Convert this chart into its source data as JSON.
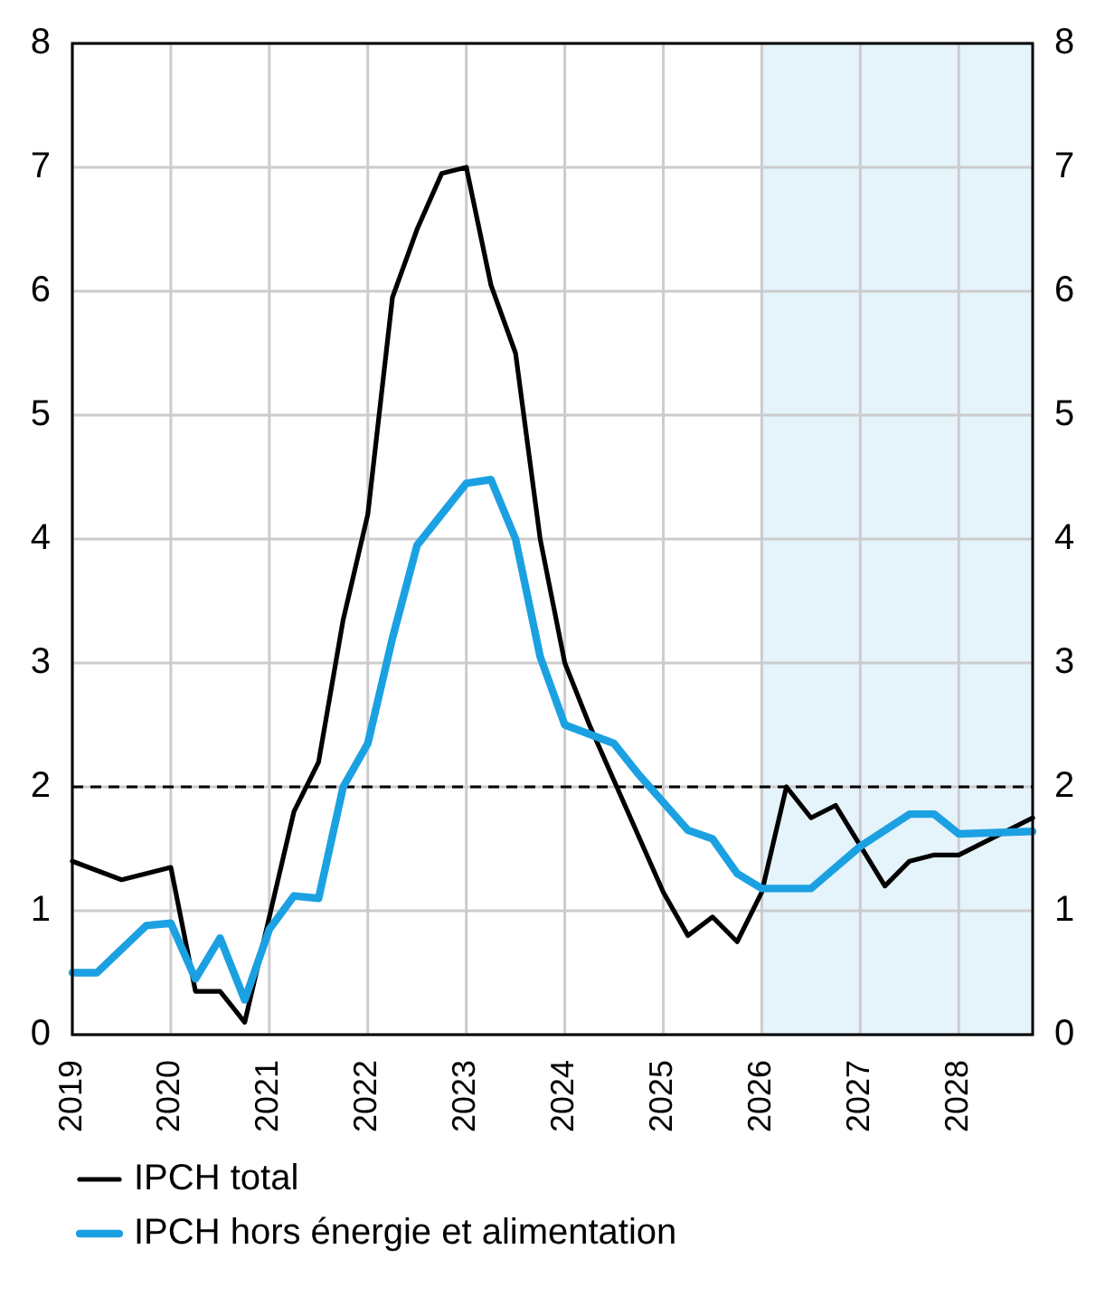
{
  "chart_data": {
    "type": "line",
    "xlim": [
      2019,
      2028.75
    ],
    "xticks": [
      2019,
      2020,
      2021,
      2022,
      2023,
      2024,
      2025,
      2026,
      2027,
      2028
    ],
    "ylim": [
      0,
      8
    ],
    "yticks": [
      0,
      1,
      2,
      3,
      4,
      5,
      6,
      7,
      8
    ],
    "y2lim": [
      0,
      8
    ],
    "y2ticks": [
      0,
      1,
      2,
      3,
      4,
      5,
      6,
      7,
      8
    ],
    "grid": true,
    "legend": "bottom",
    "line_style": "solid",
    "marker": "none",
    "ref_lines": [
      {
        "axis": "y",
        "value": 2,
        "color": "#000000",
        "line_style": "dashed"
      }
    ],
    "bands": [
      {
        "axis": "x",
        "from": 2026,
        "to": 2028.75,
        "color": "#e5f3fb"
      }
    ],
    "series": [
      {
        "name": "IPCH total",
        "color": "#000000",
        "x": [
          2019,
          2019.5,
          2020,
          2020.25,
          2020.5,
          2020.75,
          2021.25,
          2021.5,
          2021.75,
          2022,
          2022.25,
          2022.5,
          2022.75,
          2023,
          2023.25,
          2023.5,
          2023.75,
          2024,
          2024.25,
          2025,
          2025.25,
          2025.5,
          2025.75,
          2026,
          2026.25,
          2026.5,
          2026.75,
          2027.25,
          2027.5,
          2027.75,
          2028,
          2028.75
        ],
        "values": [
          1.4,
          1.25,
          1.35,
          0.35,
          0.35,
          0.1,
          1.8,
          2.2,
          3.35,
          4.2,
          5.95,
          6.5,
          6.95,
          7.0,
          6.05,
          5.5,
          4.0,
          3.0,
          2.5,
          1.15,
          0.8,
          0.95,
          0.75,
          1.15,
          2.0,
          1.75,
          1.85,
          1.2,
          1.4,
          1.45,
          1.45,
          1.75
        ]
      },
      {
        "name": "IPCH hors énergie et alimentation",
        "color": "#1ba1e2",
        "x": [
          2019,
          2019.25,
          2019.75,
          2020,
          2020.25,
          2020.5,
          2020.75,
          2021,
          2021.25,
          2021.5,
          2021.75,
          2022,
          2022.25,
          2022.5,
          2022.75,
          2023,
          2023.25,
          2023.5,
          2023.75,
          2024,
          2024.5,
          2024.75,
          2025.25,
          2025.5,
          2025.75,
          2026,
          2026.5,
          2027,
          2027.5,
          2027.75,
          2028,
          2028.75
        ],
        "values": [
          0.5,
          0.5,
          0.88,
          0.9,
          0.45,
          0.78,
          0.28,
          0.85,
          1.12,
          1.1,
          2.0,
          2.35,
          3.2,
          3.95,
          4.2,
          4.45,
          4.48,
          4.0,
          3.05,
          2.5,
          2.35,
          2.1,
          1.65,
          1.58,
          1.3,
          1.18,
          1.18,
          1.52,
          1.78,
          1.78,
          1.62,
          1.64
        ]
      }
    ]
  }
}
